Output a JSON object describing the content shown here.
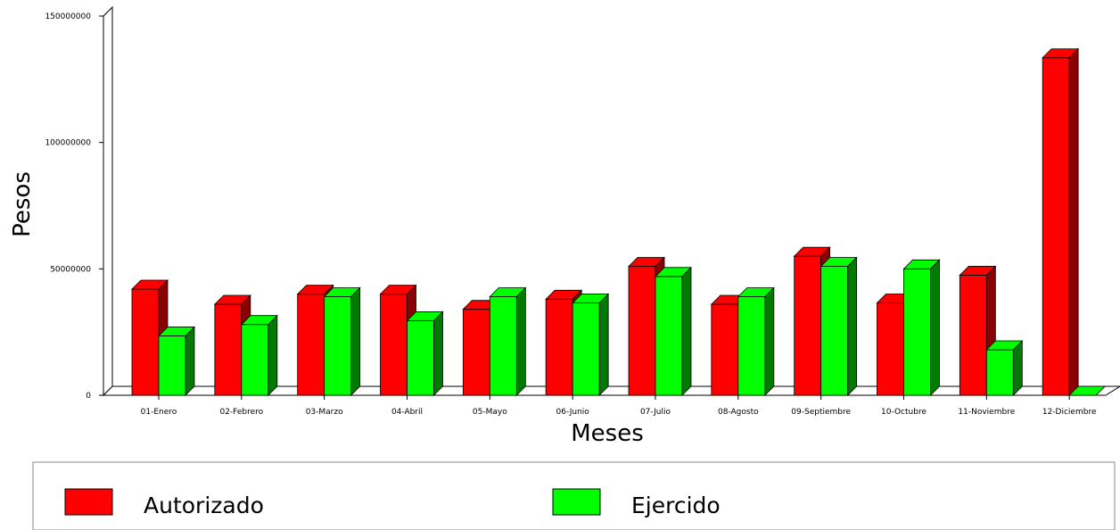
{
  "chart_data": {
    "type": "bar",
    "xlabel": "Meses",
    "ylabel": "Pesos",
    "ylim": [
      0,
      150000000
    ],
    "yticks": [
      0,
      50000000,
      100000000,
      150000000
    ],
    "ytick_labels": [
      "0",
      "50000000",
      "100000000",
      "150000000"
    ],
    "grid": false,
    "legend_position": "bottom",
    "categories": [
      "01-Enero",
      "02-Febrero",
      "03-Marzo",
      "04-Abril",
      "05-Mayo",
      "06-Junio",
      "07-Julio",
      "08-Agosto",
      "09-Septiembre",
      "10-Octubre",
      "11-Noviembre",
      "12-Diciembre"
    ],
    "series": [
      {
        "name": "Autorizado",
        "color": "#ff0000",
        "values": [
          42000000,
          36000000,
          40000000,
          40000000,
          34000000,
          38000000,
          51000000,
          36000000,
          55000000,
          36500000,
          47500000,
          133500000
        ]
      },
      {
        "name": "Ejercido",
        "color": "#00ff00",
        "values": [
          23500000,
          28000000,
          39000000,
          29500000,
          39000000,
          36500000,
          47000000,
          39000000,
          51000000,
          50000000,
          18000000,
          0
        ]
      }
    ]
  }
}
